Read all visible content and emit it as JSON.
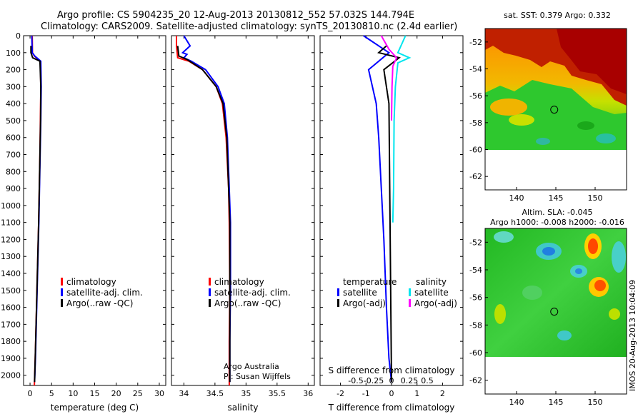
{
  "header": {
    "line1": "Argo profile: CS 5904235_20 12-Aug-2013 20130812_552 57.032S 144.794E",
    "line2": "Climatology: CARS2009. Satellite-adjusted climatology: synTS_20130810.nc (2.4d earlier)"
  },
  "chart_data": [
    {
      "id": "temperature",
      "type": "line",
      "xlabel": "temperature (deg C)",
      "ylabel": "",
      "xlim": [
        -1.5,
        31.5
      ],
      "ylim": [
        2060,
        0
      ],
      "xticks": [
        "0",
        "5",
        "10",
        "15",
        "20",
        "25",
        "30"
      ],
      "yticks": [
        "0",
        "100",
        "200",
        "300",
        "400",
        "500",
        "600",
        "700",
        "800",
        "900",
        "1000",
        "1100",
        "1200",
        "1300",
        "1400",
        "1500",
        "1600",
        "1700",
        "1800",
        "1900",
        "2000"
      ],
      "legend": [
        {
          "label": "climatology",
          "color": "#ff0000"
        },
        {
          "label": "satellite-adj. clim.",
          "color": "#0000ff"
        },
        {
          "label": "Argo(..raw -QC)",
          "color": "#000000"
        }
      ],
      "series": [
        {
          "color": "#ff0000",
          "x": [
            0.5,
            0.55,
            1.0,
            2.4,
            2.5,
            2.4,
            2.3,
            2.15,
            2.0,
            1.8,
            1.6,
            1.4,
            1.2,
            1.0
          ],
          "y": [
            0,
            100,
            120,
            150,
            300,
            500,
            700,
            900,
            1100,
            1300,
            1500,
            1700,
            1900,
            2060
          ]
        },
        {
          "color": "#0000ff",
          "x": [
            0.4,
            0.5,
            1.1,
            2.5,
            2.6,
            2.5,
            2.35,
            2.2,
            2.05,
            1.85,
            1.65,
            1.45,
            1.25,
            1.05
          ],
          "y": [
            0,
            100,
            120,
            150,
            300,
            500,
            700,
            900,
            1100,
            1300,
            1500,
            1700,
            1900,
            2040
          ]
        },
        {
          "color": "#000000",
          "x": [
            0.2,
            0.2,
            0.6,
            2.3,
            2.5,
            2.45,
            2.3,
            2.15,
            2.0,
            1.8,
            1.6,
            1.4,
            1.2,
            1.05
          ],
          "y": [
            60,
            100,
            130,
            150,
            300,
            500,
            700,
            900,
            1100,
            1300,
            1500,
            1700,
            1900,
            2040
          ]
        }
      ]
    },
    {
      "id": "salinity",
      "type": "line",
      "xlabel": "salinity",
      "ylabel": "",
      "xlim": [
        33.8,
        36.1
      ],
      "ylim": [
        2060,
        0
      ],
      "xticks": [
        "34",
        "34.5",
        "35",
        "35.5",
        "36"
      ],
      "legend": [
        {
          "label": "climatology",
          "color": "#ff0000"
        },
        {
          "label": "satellite-adj. clim.",
          "color": "#0000ff"
        },
        {
          "label": "Argo(..raw -QC)",
          "color": "#000000"
        }
      ],
      "annotation": [
        "Argo Australia",
        "PI: Susan Wijffels"
      ],
      "series": [
        {
          "color": "#ff0000",
          "x": [
            33.88,
            33.88,
            33.9,
            34.08,
            34.3,
            34.52,
            34.62,
            34.68,
            34.72,
            34.73,
            34.74,
            34.73,
            34.73,
            34.73
          ],
          "y": [
            0,
            60,
            130,
            150,
            200,
            300,
            400,
            600,
            900,
            1100,
            1500,
            1800,
            2000,
            2060
          ]
        },
        {
          "color": "#0000ff",
          "x": [
            34.0,
            34.1,
            33.98,
            34.05,
            34.0,
            34.12,
            34.35,
            34.55,
            34.65,
            34.7,
            34.73,
            34.75,
            34.75,
            34.74,
            34.74,
            34.74
          ],
          "y": [
            0,
            60,
            100,
            110,
            130,
            150,
            200,
            300,
            400,
            600,
            900,
            1100,
            1500,
            1800,
            2000,
            2040
          ]
        },
        {
          "color": "#000000",
          "x": [
            33.9,
            33.92,
            34.05,
            34.3,
            34.52,
            34.63,
            34.69,
            34.72,
            34.74,
            34.74,
            34.74,
            34.74,
            34.74
          ],
          "y": [
            60,
            120,
            140,
            200,
            300,
            400,
            600,
            900,
            1100,
            1500,
            1800,
            2000,
            2040
          ]
        }
      ]
    },
    {
      "id": "differences",
      "type": "line",
      "xlabel": "T difference from climatology",
      "xlabel2": "S difference from climatology",
      "ylabel": "",
      "xlim": [
        -2.8,
        2.8
      ],
      "ylim": [
        2060,
        0
      ],
      "xticks": [
        "-2",
        "-1",
        "0",
        "1",
        "2"
      ],
      "xticks2": [
        "-0.5",
        "-0.25",
        "0",
        "0.25",
        "0.5"
      ],
      "legend_left_title": "temperature",
      "legend_right_title": "salinity",
      "legend": [
        {
          "label": "satellite",
          "color": "#0000ff"
        },
        {
          "label": "Argo(-adj)",
          "color": "#000000"
        },
        {
          "label": "satellite",
          "color": "#00e5ee"
        },
        {
          "label": "Argo(-adj)",
          "color": "#ff00ff"
        }
      ],
      "series": [
        {
          "name": "T satellite",
          "color": "#0000ff",
          "x": [
            -1.1,
            -0.1,
            -0.9,
            -0.6,
            -0.5,
            -0.4,
            -0.3,
            -0.2,
            -0.1,
            0
          ],
          "y": [
            0,
            100,
            200,
            400,
            600,
            900,
            1200,
            1600,
            1900,
            2040
          ]
        },
        {
          "name": "T Argo(-adj)",
          "color": "#000000",
          "x": [
            -0.2,
            -0.5,
            0.3,
            -0.3,
            -0.1,
            0
          ],
          "y": [
            60,
            100,
            130,
            200,
            400,
            2040
          ]
        },
        {
          "name": "S satellite",
          "color": "#00e5ee",
          "x": [
            0.55,
            0.25,
            0.7,
            0.25,
            0.15,
            0.1,
            0.08,
            0.05
          ],
          "y": [
            0,
            100,
            130,
            160,
            300,
            500,
            900,
            1100
          ]
        },
        {
          "name": "S Argo(-adj)",
          "color": "#ff00ff",
          "x": [
            -0.4,
            -0.1,
            0.2,
            0.05,
            0.02,
            0
          ],
          "y": [
            0,
            80,
            130,
            180,
            300,
            500
          ]
        }
      ]
    },
    {
      "id": "sst-map",
      "type": "heatmap",
      "title": "sat. SST: 0.379 Argo: 0.332",
      "xlim": [
        136,
        154
      ],
      "ylim": [
        -63,
        -51
      ],
      "xticks": [
        140,
        145,
        150
      ],
      "yticks": [
        -52,
        -54,
        -56,
        -58,
        -60,
        -62
      ],
      "marker": {
        "x": 144.794,
        "y": -57.032
      }
    },
    {
      "id": "sla-map",
      "type": "heatmap",
      "title": "Altim. SLA: -0.045",
      "subtitle": "Argo h1000: -0.008 h2000: -0.016",
      "xlim": [
        136,
        154
      ],
      "ylim": [
        -63,
        -51
      ],
      "xticks": [
        140,
        145,
        150
      ],
      "yticks": [
        -52,
        -54,
        -56,
        -58,
        -60,
        -62
      ],
      "marker": {
        "x": 144.794,
        "y": -57.032
      }
    }
  ],
  "footer": {
    "stamp": "IMOS 20-Aug-2013 10:04:09"
  }
}
